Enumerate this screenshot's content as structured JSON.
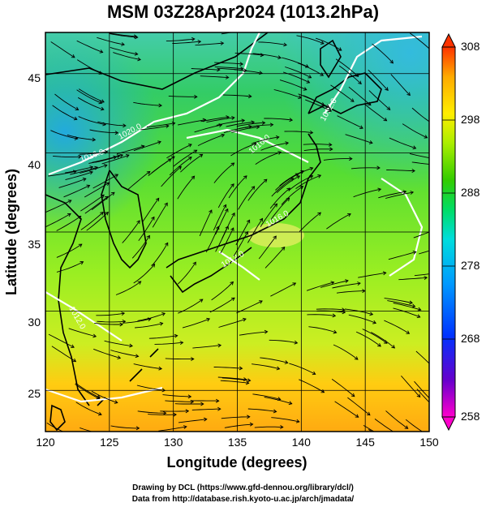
{
  "title": "MSM 03Z28Apr2024 (1013.2hPa)",
  "xaxis": {
    "label": "Longitude (degrees)",
    "range": [
      120,
      150
    ],
    "ticks": [
      "120",
      "125",
      "130",
      "135",
      "140",
      "145",
      "150"
    ]
  },
  "yaxis": {
    "label": "Latitude  (degrees)",
    "range": [
      22.4,
      47.6
    ],
    "ticks": [
      "25",
      "30",
      "35",
      "40",
      "45"
    ]
  },
  "colorbar": {
    "ticks": [
      "308",
      "298",
      "288",
      "278",
      "268",
      "258"
    ],
    "range": [
      258,
      308
    ],
    "colors": [
      "#ff00cc",
      "#3300cc",
      "#0066ff",
      "#00ccff",
      "#00dd88",
      "#33cc00",
      "#ccff00",
      "#ffee00",
      "#ffaa00",
      "#ff4400"
    ]
  },
  "contour_labels": [
    "1020.0",
    "1016.0",
    "1012.0",
    "1016.0",
    "1012.0",
    "1016.0",
    "1012.0"
  ],
  "credits": {
    "line1": "Drawing by DCL (https://www.gfd-dennou.org/library/dcl/)",
    "line2": "Data from http://database.rish.kyoto-u.ac.jp/arch/jmadata/"
  }
}
